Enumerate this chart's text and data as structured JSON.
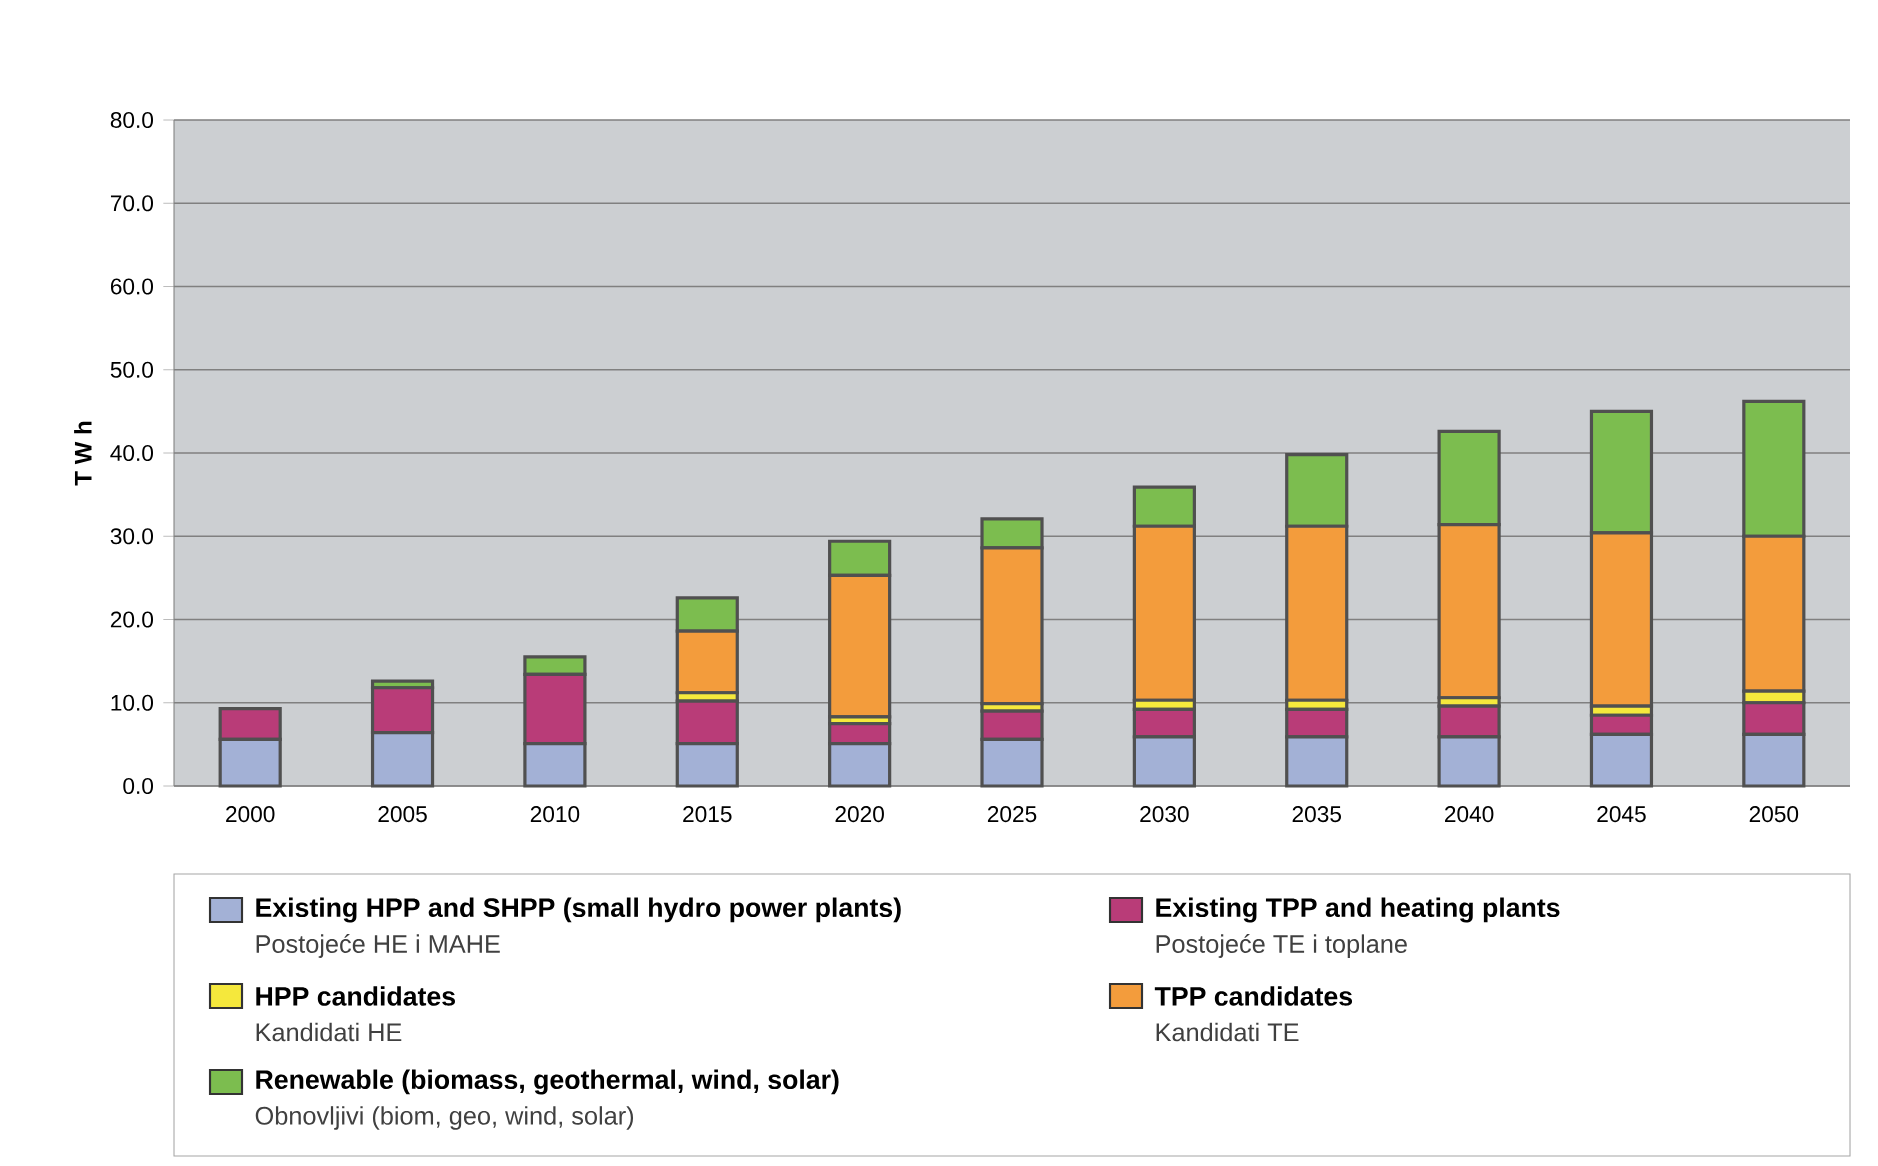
{
  "chart_data": {
    "type": "bar",
    "stacked": true,
    "ylabel": "T W h",
    "categories": [
      "2000",
      "2005",
      "2010",
      "2015",
      "2020",
      "2025",
      "2030",
      "2035",
      "2040",
      "2045",
      "2050"
    ],
    "series": [
      {
        "name": "Existing HPP and SHPP (small hydro power plants)",
        "color": "#a3b1d6",
        "values": [
          5.6,
          6.4,
          5.1,
          5.1,
          5.1,
          5.6,
          5.9,
          5.9,
          5.9,
          6.2,
          6.2
        ]
      },
      {
        "name": "Existing TPP and heating plants",
        "color": "#b93c78",
        "values": [
          3.7,
          5.4,
          8.3,
          5.1,
          2.4,
          3.4,
          3.3,
          3.3,
          3.7,
          2.3,
          3.8
        ]
      },
      {
        "name": "HPP candidates",
        "color": "#f5e83c",
        "values": [
          null,
          null,
          null,
          1.0,
          0.8,
          0.9,
          1.1,
          1.1,
          1.0,
          1.1,
          1.4
        ]
      },
      {
        "name": "TPP candidates",
        "color": "#f39c3c",
        "values": [
          null,
          null,
          null,
          7.4,
          17.0,
          18.7,
          20.9,
          20.9,
          20.8,
          20.8,
          18.6
        ]
      },
      {
        "name": "Renewable (biomass, geothermal, wind, solar)",
        "color": "#7cbd4f",
        "values": [
          null,
          0.8,
          2.1,
          4.0,
          4.1,
          3.5,
          4.7,
          8.6,
          11.2,
          14.6,
          16.2
        ]
      }
    ],
    "annotations": [
      "Postojeće HE i MAHE",
      "Postojeće TE i toplane",
      "Kandidati HE",
      "Kandidati TE",
      "Obnovljivi (biom, geo, wind, solar)"
    ],
    "ylim": [
      0,
      80
    ],
    "yticks": [
      {
        "value": 0,
        "label": "0.0"
      },
      {
        "value": 10,
        "label": "10.0"
      },
      {
        "value": 20,
        "label": "20.0"
      },
      {
        "value": 30,
        "label": "30.0"
      },
      {
        "value": 40,
        "label": "40.0"
      },
      {
        "value": 50,
        "label": "50.0"
      },
      {
        "value": 60,
        "label": "60.0"
      },
      {
        "value": 70,
        "label": "70.0"
      },
      {
        "value": 80,
        "label": "80.0"
      }
    ],
    "grid": "y",
    "legend": "bottom"
  }
}
